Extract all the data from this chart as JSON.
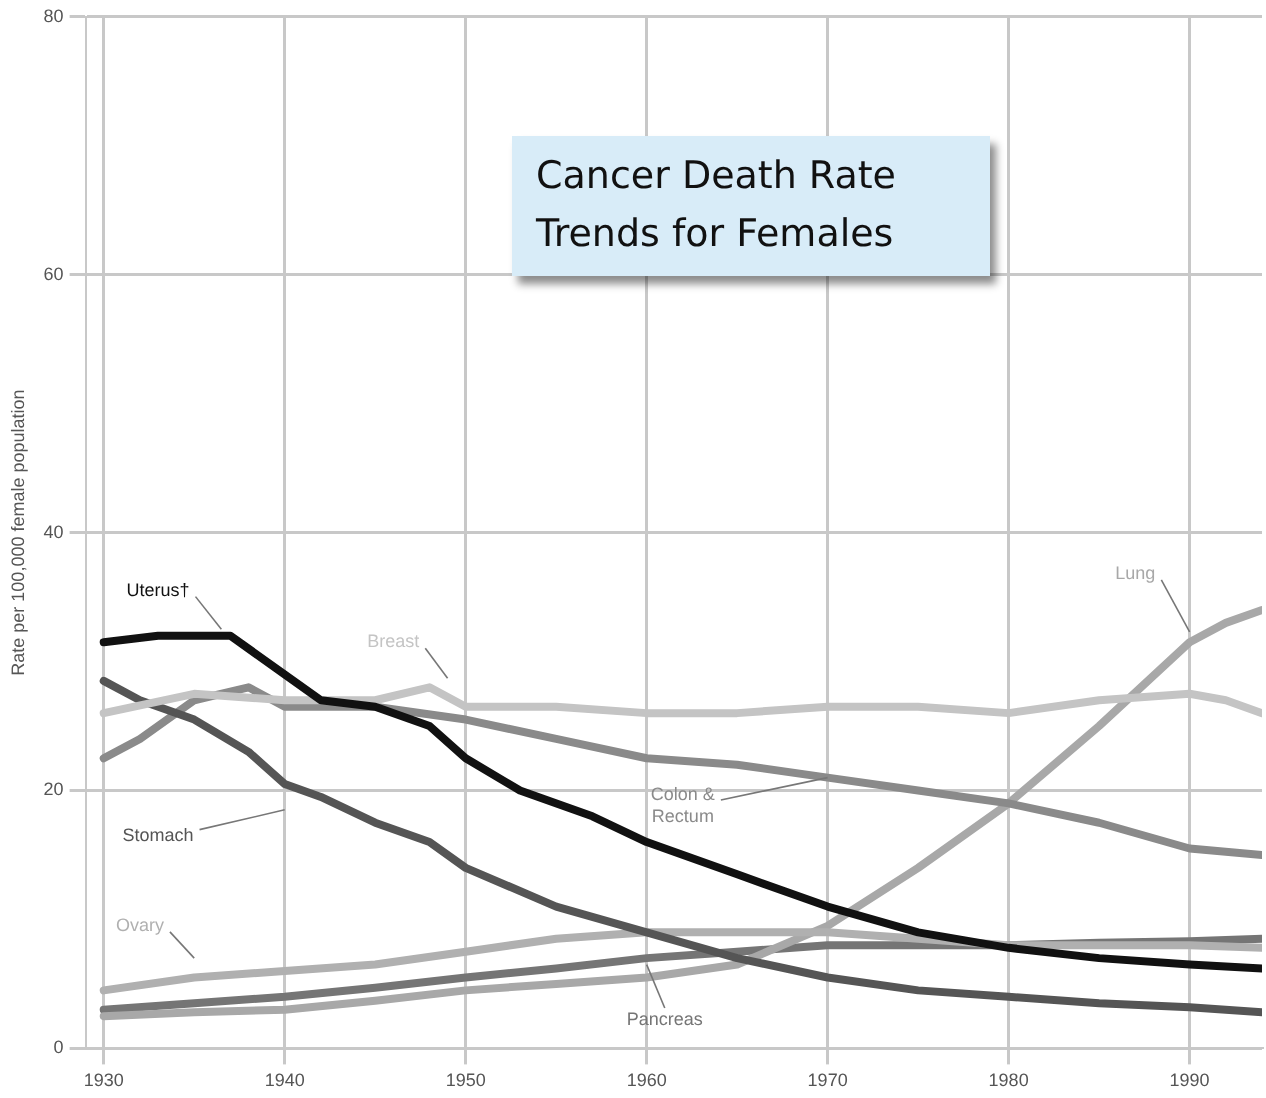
{
  "chart_data": {
    "type": "line",
    "title": "Cancer Death Rate Trends for Females",
    "ylabel": "Rate per 100,000 female population",
    "xlim": [
      1929,
      1994
    ],
    "xticks": [
      1930,
      1940,
      1950,
      1960,
      1970,
      1980,
      1990
    ],
    "ylim": [
      0,
      80
    ],
    "yticks": [
      0,
      20,
      40,
      60,
      80
    ],
    "grid": true,
    "legend": false,
    "marker": "none",
    "line_style": "solid",
    "series": [
      {
        "name": "Uterus†",
        "color": "#111111",
        "x": [
          1930,
          1933,
          1935,
          1937,
          1940,
          1942,
          1945,
          1948,
          1950,
          1953,
          1957,
          1960,
          1965,
          1970,
          1975,
          1980,
          1985,
          1990,
          1994
        ],
        "values": [
          31.5,
          32,
          32,
          32,
          29,
          27,
          26.5,
          25,
          22.5,
          20,
          18,
          16,
          13.5,
          11,
          9,
          7.8,
          7,
          6.5,
          6.2
        ]
      },
      {
        "name": "Breast",
        "color": "#c4c4c4",
        "x": [
          1930,
          1935,
          1940,
          1945,
          1948,
          1950,
          1955,
          1960,
          1965,
          1970,
          1975,
          1980,
          1985,
          1990,
          1992,
          1994
        ],
        "values": [
          26,
          27.5,
          27,
          27,
          28,
          26.5,
          26.5,
          26,
          26,
          26.5,
          26.5,
          26,
          27,
          27.5,
          27,
          26
        ]
      },
      {
        "name": "Stomach",
        "color": "#555555",
        "x": [
          1930,
          1932,
          1935,
          1938,
          1940,
          1942,
          1945,
          1948,
          1950,
          1955,
          1960,
          1965,
          1970,
          1975,
          1980,
          1985,
          1990,
          1994
        ],
        "values": [
          28.5,
          27,
          25.5,
          23,
          20.5,
          19.5,
          17.5,
          16,
          14,
          11,
          9,
          7,
          5.5,
          4.5,
          4,
          3.5,
          3.2,
          2.8
        ]
      },
      {
        "name": "Colon & Rectum",
        "color": "#8a8a8a",
        "x": [
          1930,
          1932,
          1935,
          1938,
          1940,
          1945,
          1950,
          1955,
          1960,
          1965,
          1970,
          1975,
          1980,
          1985,
          1990,
          1994
        ],
        "values": [
          22.5,
          24,
          27,
          28,
          26.5,
          26.5,
          25.5,
          24,
          22.5,
          22,
          21,
          20,
          19,
          17.5,
          15.5,
          15
        ]
      },
      {
        "name": "Ovary",
        "color": "#b0b0b0",
        "x": [
          1930,
          1935,
          1940,
          1945,
          1950,
          1955,
          1960,
          1965,
          1970,
          1975,
          1980,
          1985,
          1990,
          1994
        ],
        "values": [
          4.5,
          5.5,
          6,
          6.5,
          7.5,
          8.5,
          9,
          9,
          9,
          8.5,
          8,
          8,
          8,
          7.8
        ]
      },
      {
        "name": "Lung",
        "color": "#a8a8a8",
        "x": [
          1930,
          1935,
          1940,
          1945,
          1950,
          1955,
          1960,
          1965,
          1970,
          1975,
          1980,
          1985,
          1990,
          1992,
          1994
        ],
        "values": [
          2.5,
          2.8,
          3,
          3.7,
          4.5,
          5,
          5.5,
          6.5,
          9.5,
          14,
          19,
          25,
          31.5,
          33,
          34
        ]
      },
      {
        "name": "Pancreas",
        "color": "#757575",
        "x": [
          1930,
          1935,
          1940,
          1945,
          1950,
          1955,
          1960,
          1965,
          1970,
          1975,
          1980,
          1985,
          1990,
          1994
        ],
        "values": [
          3,
          3.5,
          4,
          4.7,
          5.5,
          6.2,
          7,
          7.5,
          8,
          8,
          8,
          8.2,
          8.3,
          8.5
        ]
      }
    ]
  }
}
